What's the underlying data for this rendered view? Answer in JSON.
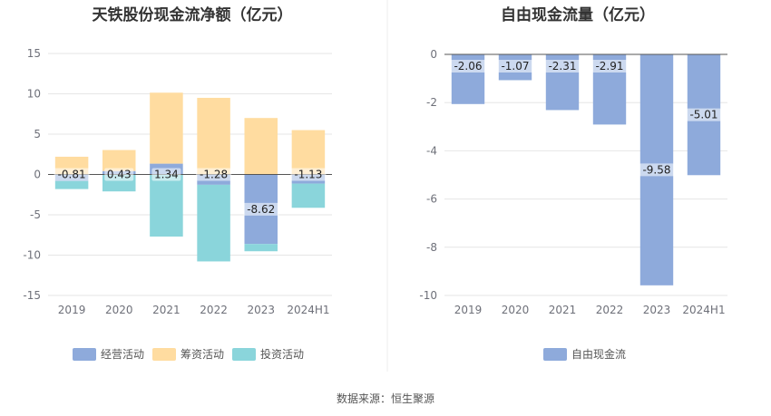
{
  "source": "数据来源：恒生聚源",
  "chart_data": [
    {
      "type": "bar",
      "stacked": true,
      "title": "天铁股份现金流净额（亿元）",
      "categories": [
        "2019",
        "2020",
        "2021",
        "2022",
        "2023",
        "2024H1"
      ],
      "ylim": [
        -15,
        15
      ],
      "yticks": [
        "15",
        "10",
        "5",
        "0",
        "-5",
        "-10",
        "-15"
      ],
      "grid": true,
      "legend_position": "bottom",
      "series": [
        {
          "name": "经营活动",
          "color": "#8eaadb",
          "values": [
            -0.81,
            0.43,
            1.34,
            -1.28,
            -8.62,
            -1.13
          ],
          "labels": [
            "-0.81",
            "0.43",
            "1.34",
            "-1.28",
            "-8.62",
            "-1.13"
          ]
        },
        {
          "name": "筹资活动",
          "color": "#ffdca0",
          "values": [
            2.2,
            2.6,
            8.8,
            9.5,
            7.0,
            5.5
          ]
        },
        {
          "name": "投资活动",
          "color": "#8ad5db",
          "values": [
            -1.0,
            -2.1,
            -7.7,
            -9.5,
            -0.9,
            -3.0
          ]
        }
      ]
    },
    {
      "type": "bar",
      "title": "自由现金流量（亿元）",
      "categories": [
        "2019",
        "2020",
        "2021",
        "2022",
        "2023",
        "2024H1"
      ],
      "ylim": [
        -10,
        0
      ],
      "yticks": [
        "0",
        "-2",
        "-4",
        "-6",
        "-8",
        "-10"
      ],
      "grid": true,
      "legend_position": "bottom",
      "series": [
        {
          "name": "自由现金流",
          "color": "#8eaadb",
          "values": [
            -2.06,
            -1.07,
            -2.31,
            -2.91,
            -9.58,
            -5.01
          ],
          "labels": [
            "-2.06",
            "-1.07",
            "-2.31",
            "-2.91",
            "-9.58",
            "-5.01"
          ]
        }
      ]
    }
  ]
}
